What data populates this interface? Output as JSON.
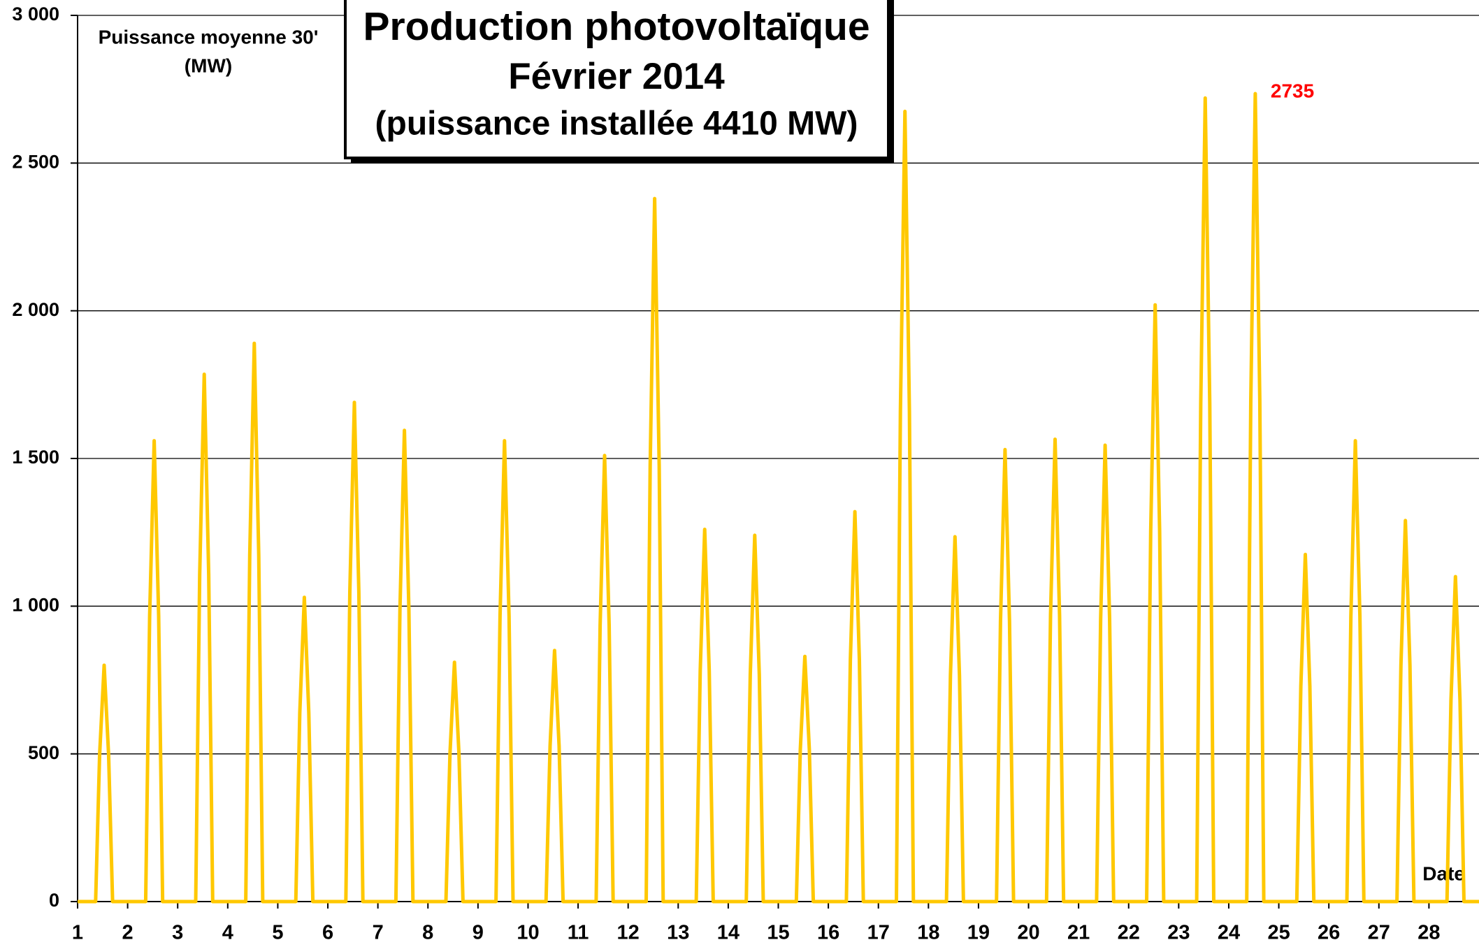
{
  "chart_data": {
    "type": "line",
    "title": "Production photovoltaïque",
    "subtitle": "Février 2014",
    "note": "(puissance installée 4410 MW)",
    "y_label": [
      "Puissance moyenne 30'",
      "(MW)"
    ],
    "x_label": "Date",
    "annotation": "2735",
    "color": "#ffc800",
    "grid": true,
    "xlim": [
      1,
      29
    ],
    "xticks": [
      1,
      2,
      3,
      4,
      5,
      6,
      7,
      8,
      9,
      10,
      11,
      12,
      13,
      14,
      15,
      16,
      17,
      18,
      19,
      20,
      21,
      22,
      23,
      24,
      25,
      26,
      27,
      28
    ],
    "ylim": [
      0,
      3000
    ],
    "yticks": [
      0,
      500,
      {
        "value": 1000,
        "label": "1 000"
      },
      {
        "value": 1500,
        "label": "1 500"
      },
      {
        "value": 2000,
        "label": "2 000"
      },
      {
        "value": 2500,
        "label": "2 500"
      },
      {
        "value": 3000,
        "label": "3 000"
      }
    ],
    "x": [
      1,
      1.36,
      1.44,
      1.53,
      1.62,
      1.7,
      2.36,
      2.44,
      2.53,
      2.62,
      2.7,
      3.36,
      3.44,
      3.53,
      3.62,
      3.7,
      4.36,
      4.44,
      4.53,
      4.62,
      4.7,
      5.36,
      5.44,
      5.53,
      5.62,
      5.7,
      6.36,
      6.44,
      6.53,
      6.62,
      6.7,
      7.36,
      7.44,
      7.53,
      7.62,
      7.7,
      8.36,
      8.44,
      8.53,
      8.62,
      8.7,
      9.36,
      9.44,
      9.53,
      9.62,
      9.7,
      10.36,
      10.44,
      10.53,
      10.62,
      10.7,
      11.36,
      11.44,
      11.53,
      11.62,
      11.7,
      12.36,
      12.44,
      12.53,
      12.62,
      12.7,
      13.36,
      13.44,
      13.53,
      13.62,
      13.7,
      14.36,
      14.44,
      14.53,
      14.62,
      14.7,
      15.36,
      15.44,
      15.53,
      15.62,
      15.7,
      16.36,
      16.44,
      16.53,
      16.62,
      16.7,
      17.36,
      17.44,
      17.53,
      17.62,
      17.7,
      18.36,
      18.44,
      18.53,
      18.62,
      18.7,
      19.36,
      19.44,
      19.53,
      19.62,
      19.7,
      20.36,
      20.44,
      20.53,
      20.62,
      20.7,
      21.36,
      21.44,
      21.53,
      21.62,
      21.7,
      22.36,
      22.44,
      22.53,
      22.62,
      22.7,
      23.36,
      23.44,
      23.53,
      23.62,
      23.7,
      24.36,
      24.44,
      24.53,
      24.62,
      24.7,
      25.36,
      25.44,
      25.53,
      25.62,
      25.7,
      26.36,
      26.44,
      26.53,
      26.62,
      26.7,
      27.36,
      27.44,
      27.53,
      27.62,
      27.7,
      28.36,
      28.44,
      28.53,
      28.62,
      28.7,
      29
    ],
    "values": [
      0,
      0,
      496,
      800,
      496,
      0,
      0,
      967,
      1560,
      967,
      0,
      0,
      1107,
      1785,
      1107,
      0,
      0,
      1172,
      1890,
      1172,
      0,
      0,
      639,
      1030,
      639,
      0,
      0,
      1048,
      1690,
      1048,
      0,
      0,
      989,
      1595,
      989,
      0,
      0,
      502,
      810,
      502,
      0,
      0,
      967,
      1560,
      967,
      0,
      0,
      527,
      850,
      527,
      0,
      0,
      936,
      1510,
      936,
      0,
      0,
      1476,
      2380,
      1476,
      0,
      0,
      781,
      1260,
      781,
      0,
      0,
      769,
      1240,
      769,
      0,
      0,
      515,
      830,
      515,
      0,
      0,
      818,
      1320,
      818,
      0,
      0,
      1659,
      2675,
      1659,
      0,
      0,
      766,
      1235,
      766,
      0,
      0,
      949,
      1530,
      949,
      0,
      0,
      970,
      1565,
      970,
      0,
      0,
      958,
      1545,
      958,
      0,
      0,
      1252,
      2020,
      1252,
      0,
      0,
      1686,
      2720,
      1686,
      0,
      0,
      1696,
      2735,
      1696,
      0,
      0,
      729,
      1175,
      729,
      0,
      0,
      967,
      1560,
      967,
      0,
      0,
      800,
      1290,
      800,
      0,
      0,
      682,
      1100,
      682,
      0,
      0
    ]
  }
}
